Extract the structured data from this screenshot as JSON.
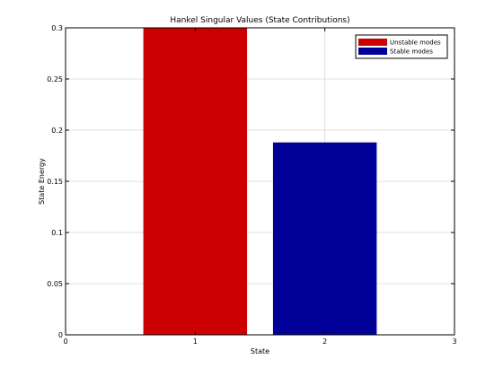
{
  "chart_data": {
    "type": "bar",
    "title": "Hankel Singular Values (State Contributions)",
    "xlabel": "State",
    "ylabel": "State Energy",
    "xlim": [
      0,
      3
    ],
    "ylim": [
      0,
      0.3
    ],
    "xticks": [
      "0",
      "1",
      "2",
      "3"
    ],
    "yticks": [
      "0",
      "0.05",
      "0.1",
      "0.15",
      "0.2",
      "0.25",
      "0.3"
    ],
    "grid": true,
    "legend_position": "top-right",
    "series": [
      {
        "name": "Unstable modes",
        "color": "#cc0000",
        "x": [
          1
        ],
        "values": [
          0.3
        ]
      },
      {
        "name": "Stable modes",
        "color": "#000099",
        "x": [
          2
        ],
        "values": [
          0.188
        ]
      }
    ]
  }
}
